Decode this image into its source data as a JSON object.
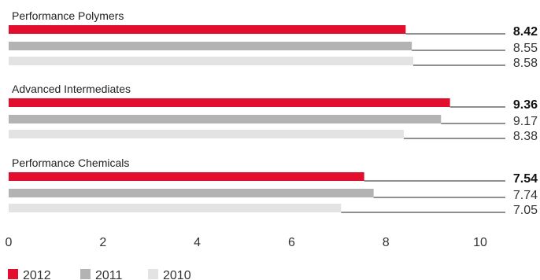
{
  "chart_data": {
    "type": "bar",
    "orientation": "horizontal",
    "title": "",
    "xlabel": "",
    "ylabel": "",
    "xlim": [
      0,
      10
    ],
    "xticks": [
      0,
      2,
      4,
      6,
      8,
      10
    ],
    "grid": false,
    "legend_placement": "bottom-left",
    "series": [
      {
        "name": "2012",
        "color": "#e30d2d"
      },
      {
        "name": "2011",
        "color": "#b3b3b3"
      },
      {
        "name": "2010",
        "color": "#e3e3e3"
      }
    ],
    "groups": [
      {
        "label": "Performance Polymers",
        "values": [
          8.42,
          8.55,
          8.58
        ],
        "value_labels": [
          "8.42",
          "8.55",
          "8.58"
        ]
      },
      {
        "label": "Advanced Intermediates",
        "values": [
          9.36,
          9.17,
          8.38
        ],
        "value_labels": [
          "9.36",
          "9.17",
          "8.38"
        ]
      },
      {
        "label": "Performance Chemicals",
        "values": [
          7.54,
          7.74,
          7.05
        ],
        "value_labels": [
          "7.54",
          "7.74",
          "7.05"
        ]
      }
    ]
  }
}
